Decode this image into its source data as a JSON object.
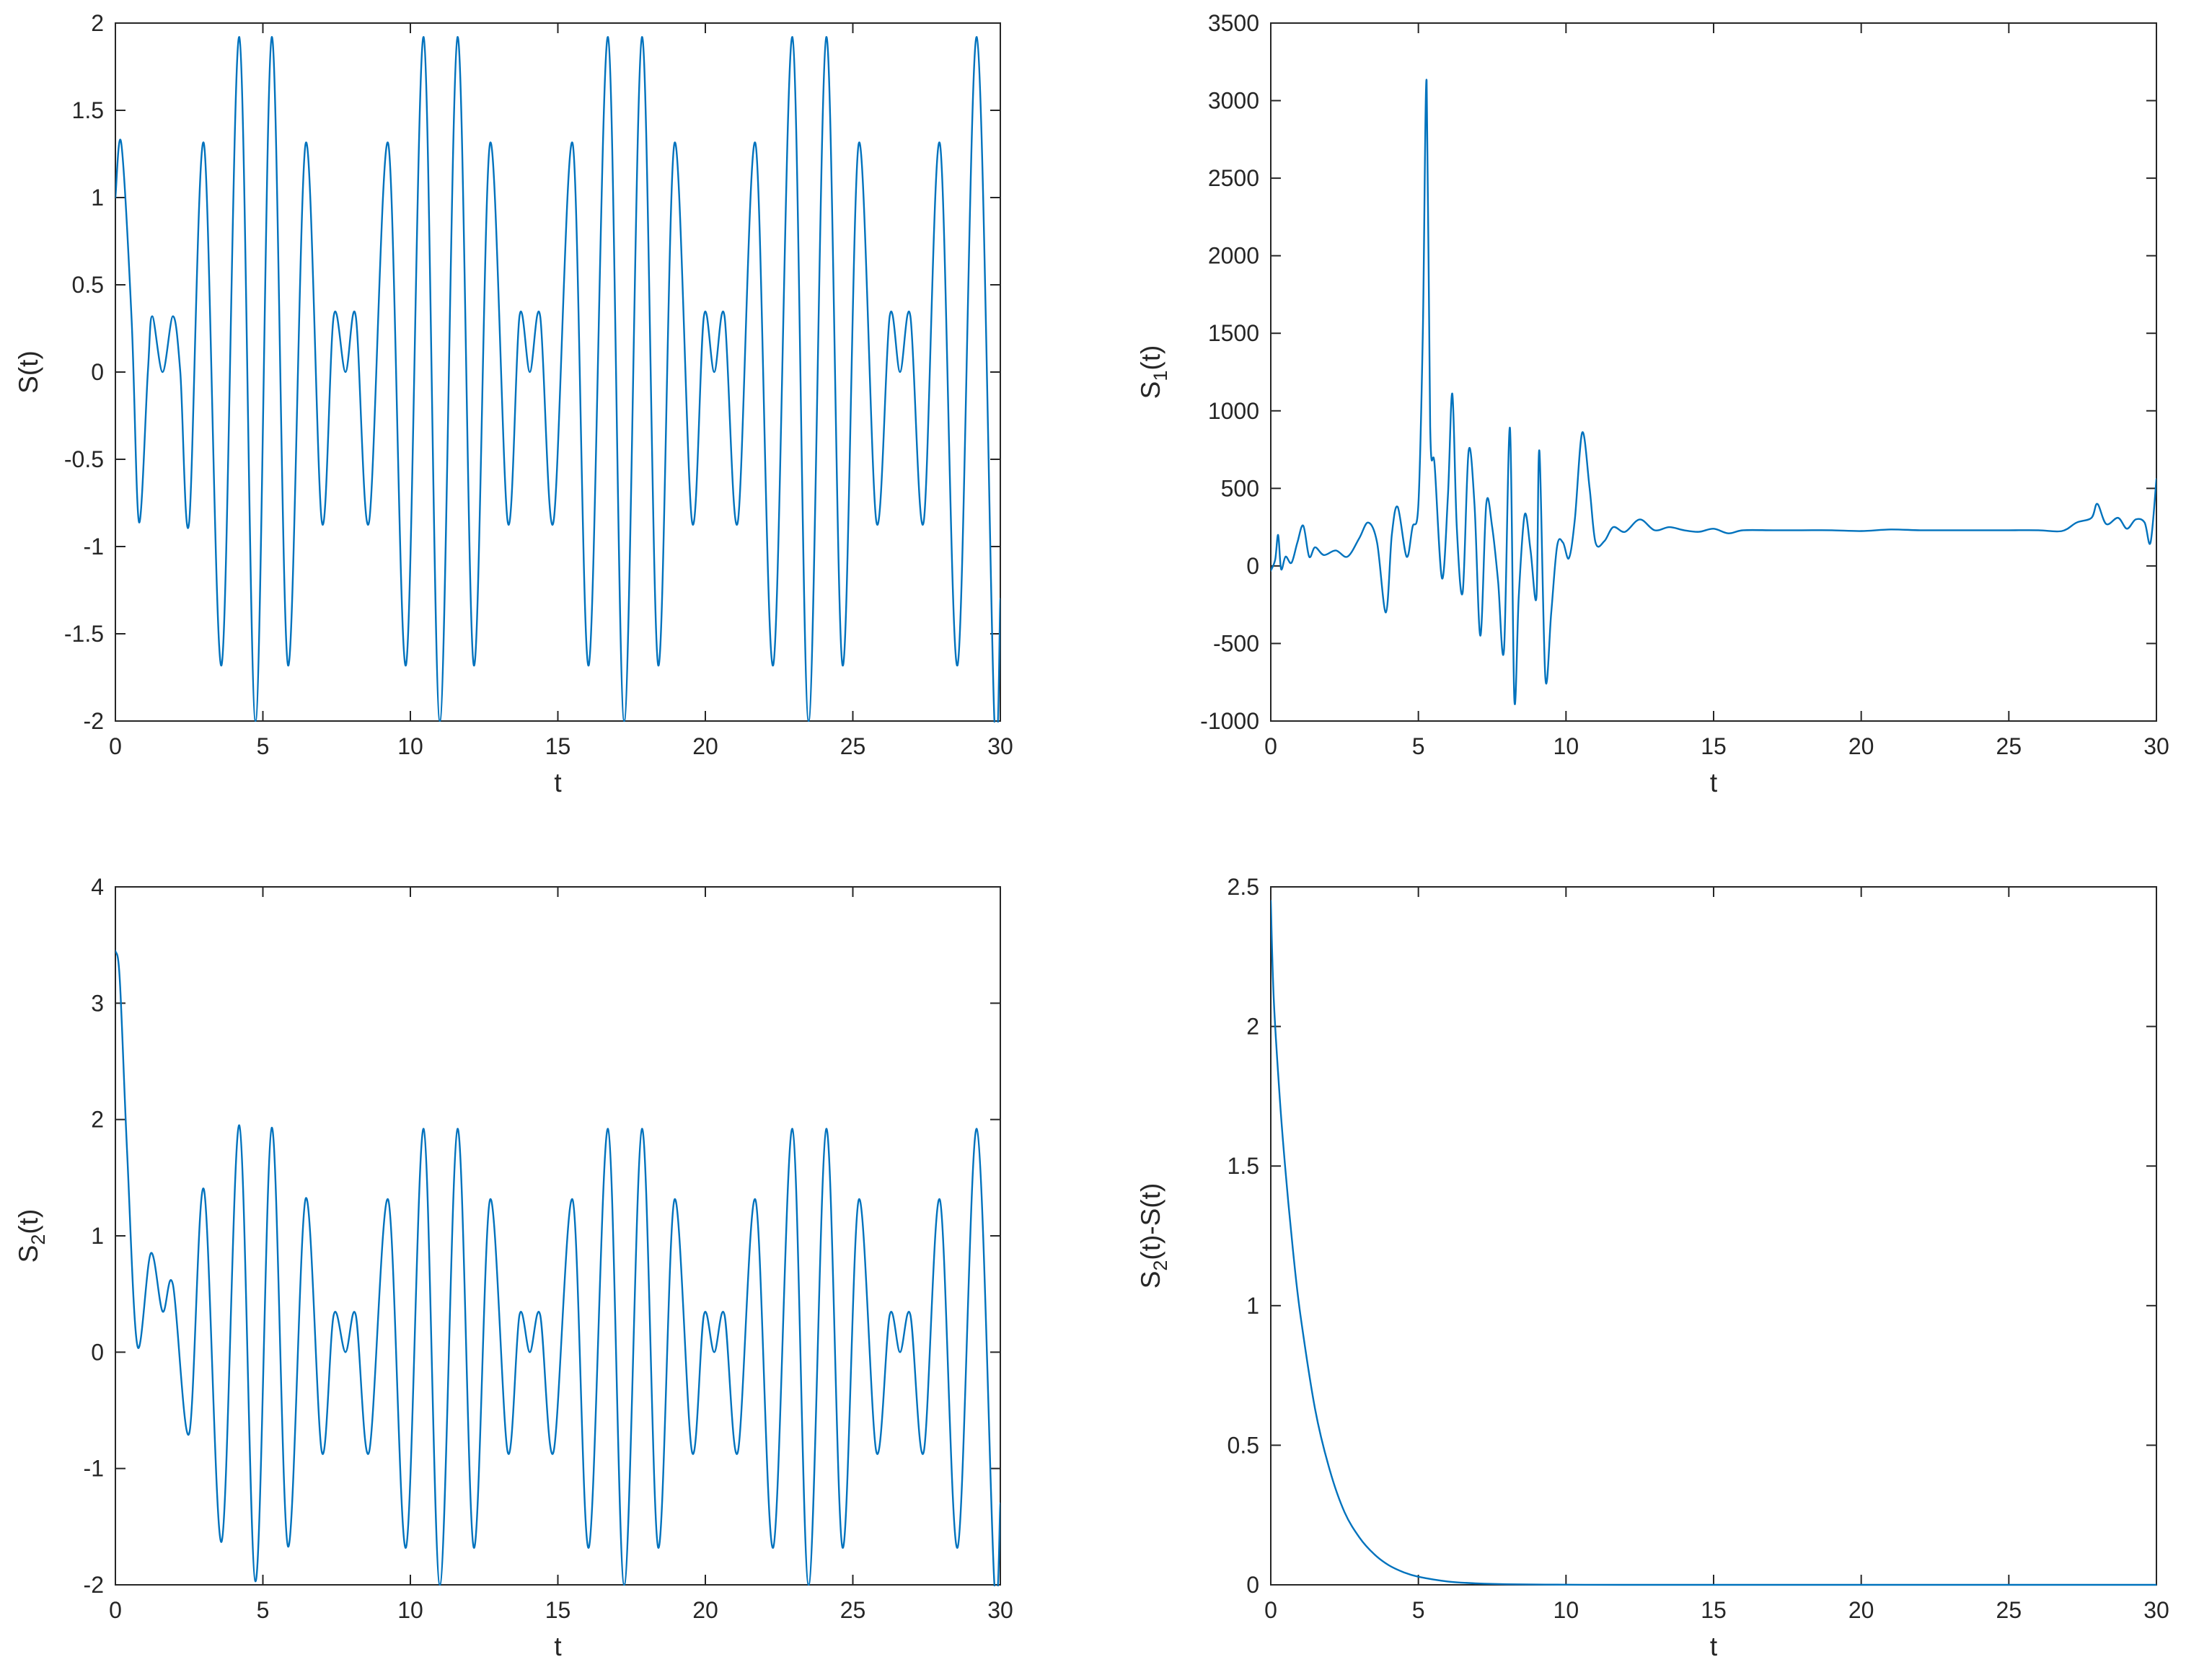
{
  "chart_data": [
    {
      "type": "line",
      "xlabel": "t",
      "ylabel": "S(t)",
      "xlim": [
        0,
        30
      ],
      "ylim": [
        -2,
        2
      ],
      "xticks": [
        "0",
        "5",
        "10",
        "15",
        "20",
        "25",
        "30"
      ],
      "yticks": [
        "-2",
        "-1.5",
        "-1",
        "-0.5",
        "0",
        "0.5",
        "1",
        "1.5",
        "2"
      ],
      "grid": false,
      "color": "#0072BD",
      "series": [
        {
          "values": [
            [
              0,
              1.0
            ],
            [
              0.2,
              1.31
            ],
            [
              0.55,
              0.3
            ],
            [
              0.8,
              -0.86
            ],
            [
              1.1,
              0.0
            ],
            [
              1.25,
              0.32
            ],
            [
              1.6,
              0.0
            ],
            [
              1.95,
              0.32
            ],
            [
              2.2,
              0.0
            ],
            [
              2.5,
              -0.86
            ],
            [
              3.0,
              1.31
            ],
            [
              3.6,
              -1.68
            ],
            [
              4.2,
              1.92
            ],
            [
              4.75,
              -2.0
            ],
            [
              5.3,
              1.92
            ],
            [
              5.85,
              -1.68
            ],
            [
              6.45,
              1.31
            ],
            [
              7.0,
              -0.86
            ],
            [
              7.4,
              0.32
            ],
            [
              7.8,
              0.0
            ],
            [
              8.15,
              0.32
            ],
            [
              8.6,
              -0.86
            ],
            [
              9.25,
              1.31
            ],
            [
              9.85,
              -1.68
            ],
            [
              10.45,
              1.92
            ],
            [
              11.0,
              -2.0
            ],
            [
              11.6,
              1.92
            ],
            [
              12.15,
              -1.68
            ],
            [
              12.7,
              1.31
            ],
            [
              13.3,
              -0.86
            ],
            [
              13.7,
              0.32
            ],
            [
              14.05,
              0.0
            ],
            [
              14.4,
              0.32
            ],
            [
              14.85,
              -0.86
            ],
            [
              15.5,
              1.31
            ],
            [
              16.05,
              -1.68
            ],
            [
              16.7,
              1.92
            ],
            [
              17.25,
              -2.0
            ],
            [
              17.85,
              1.92
            ],
            [
              18.4,
              -1.68
            ],
            [
              18.95,
              1.31
            ],
            [
              19.55,
              -0.86
            ],
            [
              19.95,
              0.32
            ],
            [
              20.3,
              0.0
            ],
            [
              20.65,
              0.32
            ],
            [
              21.1,
              -0.86
            ],
            [
              21.7,
              1.31
            ],
            [
              22.3,
              -1.68
            ],
            [
              22.95,
              1.92
            ],
            [
              23.5,
              -2.0
            ],
            [
              24.1,
              1.92
            ],
            [
              24.65,
              -1.68
            ],
            [
              25.2,
              1.31
            ],
            [
              25.8,
              -0.86
            ],
            [
              26.25,
              0.32
            ],
            [
              26.6,
              0.0
            ],
            [
              26.95,
              0.32
            ],
            [
              27.4,
              -0.86
            ],
            [
              27.95,
              1.31
            ],
            [
              28.55,
              -1.68
            ],
            [
              29.2,
              1.92
            ],
            [
              29.8,
              -2.0
            ],
            [
              30.0,
              -1.3
            ]
          ]
        }
      ]
    },
    {
      "type": "line",
      "xlabel": "t",
      "ylabel": "S",
      "ylabel_sub": "1",
      "ylabel_suffix": "(t)",
      "xlim": [
        0,
        30
      ],
      "ylim": [
        -1000,
        3500
      ],
      "xticks": [
        "0",
        "5",
        "10",
        "15",
        "20",
        "25",
        "30"
      ],
      "yticks": [
        "-1000",
        "-500",
        "0",
        "500",
        "1000",
        "1500",
        "2000",
        "2500",
        "3000",
        "3500"
      ],
      "grid": false,
      "color": "#0072BD",
      "series": [
        {
          "values": [
            [
              0,
              -30
            ],
            [
              0.15,
              40
            ],
            [
              0.25,
              200
            ],
            [
              0.35,
              -20
            ],
            [
              0.5,
              60
            ],
            [
              0.7,
              20
            ],
            [
              0.9,
              150
            ],
            [
              1.1,
              260
            ],
            [
              1.3,
              60
            ],
            [
              1.5,
              120
            ],
            [
              1.8,
              70
            ],
            [
              2.2,
              100
            ],
            [
              2.6,
              60
            ],
            [
              3.0,
              180
            ],
            [
              3.3,
              280
            ],
            [
              3.6,
              150
            ],
            [
              3.9,
              -300
            ],
            [
              4.1,
              200
            ],
            [
              4.3,
              380
            ],
            [
              4.6,
              60
            ],
            [
              4.8,
              250
            ],
            [
              5.0,
              400
            ],
            [
              5.15,
              1500
            ],
            [
              5.28,
              3130
            ],
            [
              5.4,
              900
            ],
            [
              5.55,
              650
            ],
            [
              5.8,
              -80
            ],
            [
              6.0,
              450
            ],
            [
              6.15,
              1110
            ],
            [
              6.3,
              250
            ],
            [
              6.5,
              -170
            ],
            [
              6.7,
              740
            ],
            [
              6.9,
              400
            ],
            [
              7.1,
              -450
            ],
            [
              7.3,
              400
            ],
            [
              7.5,
              250
            ],
            [
              7.7,
              -100
            ],
            [
              7.9,
              -540
            ],
            [
              8.1,
              890
            ],
            [
              8.25,
              -860
            ],
            [
              8.4,
              -200
            ],
            [
              8.6,
              330
            ],
            [
              8.8,
              100
            ],
            [
              9.0,
              -200
            ],
            [
              9.1,
              740
            ],
            [
              9.3,
              -720
            ],
            [
              9.5,
              -300
            ],
            [
              9.7,
              130
            ],
            [
              9.9,
              150
            ],
            [
              10.1,
              50
            ],
            [
              10.3,
              300
            ],
            [
              10.55,
              860
            ],
            [
              10.8,
              500
            ],
            [
              11.0,
              150
            ],
            [
              11.3,
              160
            ],
            [
              11.6,
              250
            ],
            [
              12.0,
              220
            ],
            [
              12.5,
              300
            ],
            [
              13.0,
              230
            ],
            [
              13.5,
              250
            ],
            [
              14.0,
              230
            ],
            [
              14.5,
              220
            ],
            [
              15.0,
              240
            ],
            [
              15.5,
              210
            ],
            [
              16.0,
              230
            ],
            [
              17.0,
              230
            ],
            [
              18.0,
              230
            ],
            [
              19.0,
              230
            ],
            [
              20.0,
              225
            ],
            [
              21.0,
              235
            ],
            [
              22.0,
              230
            ],
            [
              23.0,
              230
            ],
            [
              24.0,
              230
            ],
            [
              25.0,
              230
            ],
            [
              26.0,
              230
            ],
            [
              26.8,
              225
            ],
            [
              27.3,
              280
            ],
            [
              27.8,
              310
            ],
            [
              28.0,
              400
            ],
            [
              28.3,
              270
            ],
            [
              28.7,
              310
            ],
            [
              29.0,
              240
            ],
            [
              29.3,
              300
            ],
            [
              29.6,
              280
            ],
            [
              29.8,
              150
            ],
            [
              30.0,
              560
            ]
          ]
        }
      ]
    },
    {
      "type": "line",
      "xlabel": "t",
      "ylabel": "S",
      "ylabel_sub": "2",
      "ylabel_suffix": "(t)",
      "xlim": [
        0,
        30
      ],
      "ylim": [
        -2,
        4
      ],
      "xticks": [
        "0",
        "5",
        "10",
        "15",
        "20",
        "25",
        "30"
      ],
      "yticks": [
        "-2",
        "-1",
        "0",
        "1",
        "2",
        "3",
        "4"
      ],
      "grid": false,
      "color": "#0072BD",
      "series": [
        {
          "values": [
            [
              0,
              3.45
            ],
            [
              0.15,
              3.2
            ],
            [
              0.4,
              1.7
            ],
            [
              0.75,
              0.05
            ],
            [
              1.2,
              0.85
            ],
            [
              1.6,
              0.35
            ],
            [
              1.95,
              0.58
            ],
            [
              2.5,
              -0.7
            ],
            [
              3.0,
              1.4
            ],
            [
              3.6,
              -1.63
            ],
            [
              4.2,
              1.95
            ],
            [
              4.75,
              -1.97
            ],
            [
              5.3,
              1.93
            ],
            [
              5.85,
              -1.67
            ],
            [
              6.45,
              1.32
            ],
            [
              7.0,
              -0.86
            ],
            [
              7.4,
              0.32
            ],
            [
              7.8,
              0.0
            ],
            [
              8.15,
              0.32
            ],
            [
              8.6,
              -0.86
            ],
            [
              9.25,
              1.31
            ],
            [
              9.85,
              -1.68
            ],
            [
              10.45,
              1.92
            ],
            [
              11.0,
              -2.0
            ],
            [
              11.6,
              1.92
            ],
            [
              12.15,
              -1.68
            ],
            [
              12.7,
              1.31
            ],
            [
              13.3,
              -0.86
            ],
            [
              13.7,
              0.32
            ],
            [
              14.05,
              0.0
            ],
            [
              14.4,
              0.32
            ],
            [
              14.85,
              -0.86
            ],
            [
              15.5,
              1.31
            ],
            [
              16.05,
              -1.68
            ],
            [
              16.7,
              1.92
            ],
            [
              17.25,
              -2.0
            ],
            [
              17.85,
              1.92
            ],
            [
              18.4,
              -1.68
            ],
            [
              18.95,
              1.31
            ],
            [
              19.55,
              -0.86
            ],
            [
              19.95,
              0.32
            ],
            [
              20.3,
              0.0
            ],
            [
              20.65,
              0.32
            ],
            [
              21.1,
              -0.86
            ],
            [
              21.7,
              1.31
            ],
            [
              22.3,
              -1.68
            ],
            [
              22.95,
              1.92
            ],
            [
              23.5,
              -2.0
            ],
            [
              24.1,
              1.92
            ],
            [
              24.65,
              -1.68
            ],
            [
              25.2,
              1.31
            ],
            [
              25.8,
              -0.86
            ],
            [
              26.25,
              0.32
            ],
            [
              26.6,
              0.0
            ],
            [
              26.95,
              0.32
            ],
            [
              27.4,
              -0.86
            ],
            [
              27.95,
              1.31
            ],
            [
              28.55,
              -1.68
            ],
            [
              29.2,
              1.92
            ],
            [
              29.8,
              -2.0
            ],
            [
              30.0,
              -1.3
            ]
          ]
        }
      ]
    },
    {
      "type": "line",
      "xlabel": "t",
      "ylabel": "S",
      "ylabel_sub": "2",
      "ylabel_suffix": "(t)-S(t)",
      "xlim": [
        0,
        30
      ],
      "ylim": [
        0,
        2.5
      ],
      "xticks": [
        "0",
        "5",
        "10",
        "15",
        "20",
        "25",
        "30"
      ],
      "yticks": [
        "0",
        "0.5",
        "1",
        "1.5",
        "2",
        "2.5"
      ],
      "grid": false,
      "color": "#0072BD",
      "series": [
        {
          "values": [
            [
              0,
              2.45
            ],
            [
              0.1,
              2.1
            ],
            [
              0.3,
              1.75
            ],
            [
              0.5,
              1.48
            ],
            [
              0.75,
              1.2
            ],
            [
              1.0,
              0.97
            ],
            [
              1.5,
              0.63
            ],
            [
              2.0,
              0.41
            ],
            [
              2.5,
              0.26
            ],
            [
              3.0,
              0.17
            ],
            [
              3.5,
              0.11
            ],
            [
              4.0,
              0.07
            ],
            [
              4.5,
              0.045
            ],
            [
              5.0,
              0.029
            ],
            [
              6.0,
              0.012
            ],
            [
              7.0,
              0.005
            ],
            [
              8.0,
              0.002
            ],
            [
              10.0,
              0.0004
            ],
            [
              12.0,
              0.0
            ],
            [
              15.0,
              0.0
            ],
            [
              20.0,
              0.0
            ],
            [
              25.0,
              0.0
            ],
            [
              30.0,
              0.0
            ]
          ]
        }
      ]
    }
  ]
}
